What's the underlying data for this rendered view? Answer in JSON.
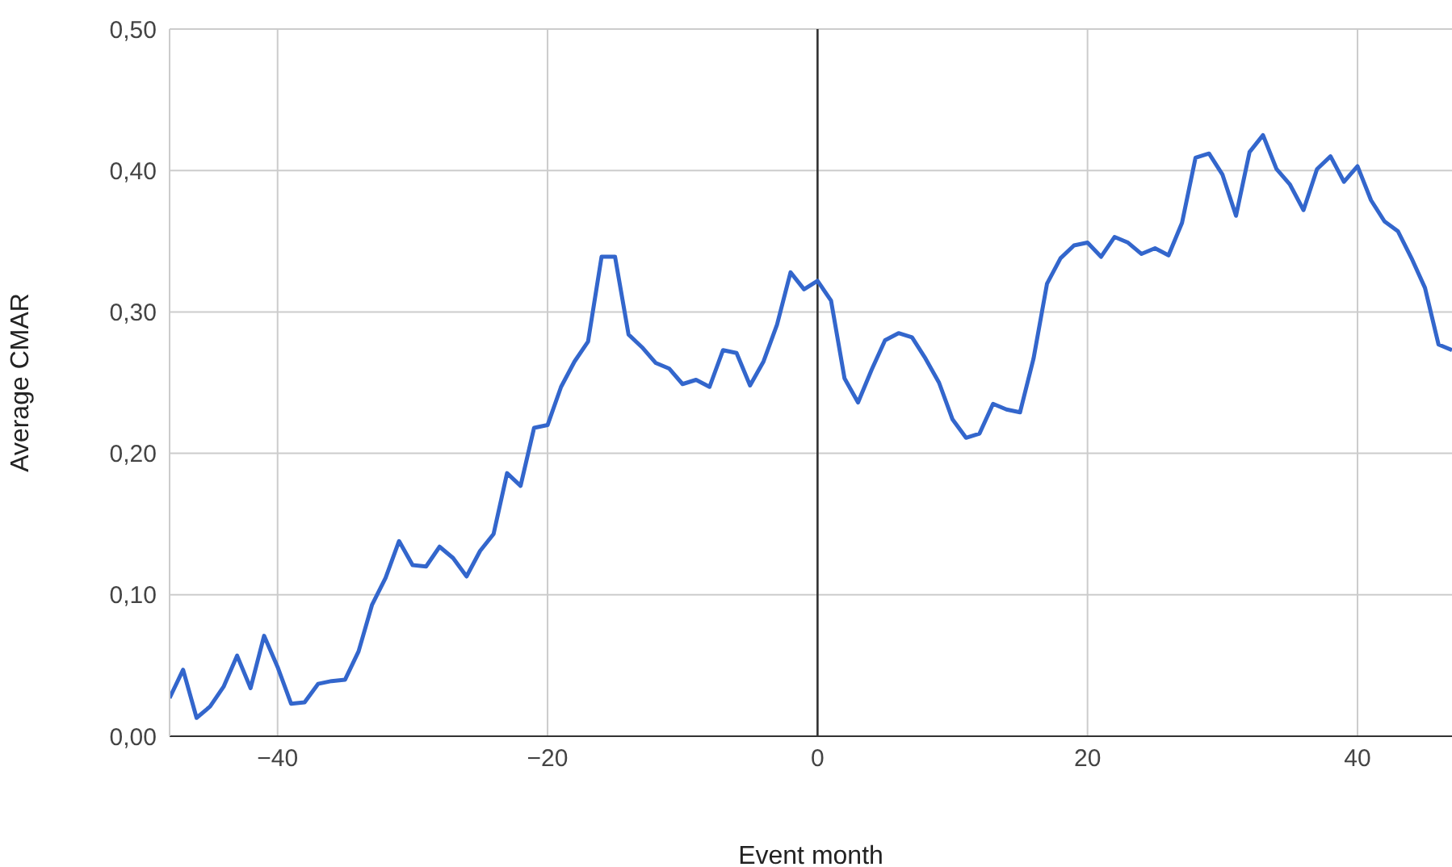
{
  "chart_data": {
    "type": "line",
    "xlabel": "Event month",
    "ylabel": "Average CMAR",
    "x": [
      -48,
      -47,
      -46,
      -45,
      -44,
      -43,
      -42,
      -41,
      -40,
      -39,
      -38,
      -37,
      -36,
      -35,
      -34,
      -33,
      -32,
      -31,
      -30,
      -29,
      -28,
      -27,
      -26,
      -25,
      -24,
      -23,
      -22,
      -21,
      -20,
      -19,
      -18,
      -17,
      -16,
      -15,
      -14,
      -13,
      -12,
      -11,
      -10,
      -9,
      -8,
      -7,
      -6,
      -5,
      -4,
      -3,
      -2,
      -1,
      0,
      1,
      2,
      3,
      4,
      5,
      6,
      7,
      8,
      9,
      10,
      11,
      12,
      13,
      14,
      15,
      16,
      17,
      18,
      19,
      20,
      21,
      22,
      23,
      24,
      25,
      26,
      27,
      28,
      29,
      30,
      31,
      32,
      33,
      34,
      35,
      36,
      37,
      38,
      39,
      40,
      41,
      42,
      43,
      44,
      45,
      46,
      47
    ],
    "series": [
      {
        "color": "#3366cc",
        "values": [
          0.027,
          0.047,
          0.013,
          0.021,
          0.035,
          0.057,
          0.034,
          0.071,
          0.049,
          0.023,
          0.024,
          0.037,
          0.039,
          0.04,
          0.06,
          0.093,
          0.112,
          0.138,
          0.121,
          0.12,
          0.134,
          0.126,
          0.113,
          0.131,
          0.143,
          0.186,
          0.177,
          0.218,
          0.22,
          0.247,
          0.265,
          0.279,
          0.339,
          0.339,
          0.284,
          0.275,
          0.264,
          0.26,
          0.249,
          0.252,
          0.247,
          0.273,
          0.271,
          0.248,
          0.265,
          0.291,
          0.328,
          0.316,
          0.322,
          0.308,
          0.253,
          0.236,
          0.259,
          0.28,
          0.285,
          0.282,
          0.267,
          0.25,
          0.224,
          0.211,
          0.214,
          0.235,
          0.231,
          0.229,
          0.267,
          0.32,
          0.338,
          0.347,
          0.349,
          0.339,
          0.353,
          0.349,
          0.341,
          0.345,
          0.34,
          0.363,
          0.409,
          0.412,
          0.397,
          0.368,
          0.413,
          0.425,
          0.401,
          0.39,
          0.372,
          0.401,
          0.41,
          0.392,
          0.403,
          0.379,
          0.364,
          0.357,
          0.338,
          0.317,
          0.277,
          0.273
        ]
      }
    ],
    "xlim": [
      -48,
      47
    ],
    "xticks": [
      {
        "value": -40,
        "label": "−40"
      },
      {
        "value": -20,
        "label": "−20"
      },
      {
        "value": 0,
        "label": "0"
      },
      {
        "value": 20,
        "label": "20"
      },
      {
        "value": 40,
        "label": "40"
      }
    ],
    "ylim": [
      0,
      0.5
    ],
    "yticks": [
      {
        "value": 0,
        "label": "0,00"
      },
      {
        "value": 0.1,
        "label": "0,10"
      },
      {
        "value": 0.2,
        "label": "0,20"
      },
      {
        "value": 0.3,
        "label": "0,30"
      },
      {
        "value": 0.4,
        "label": "0,40"
      },
      {
        "value": 0.5,
        "label": "0,50"
      }
    ],
    "ref_lines": [
      {
        "axis": "x",
        "value": 0,
        "color": "#333333"
      }
    ],
    "grid": true,
    "legend": false,
    "marker": "none",
    "line_style": "solid"
  }
}
